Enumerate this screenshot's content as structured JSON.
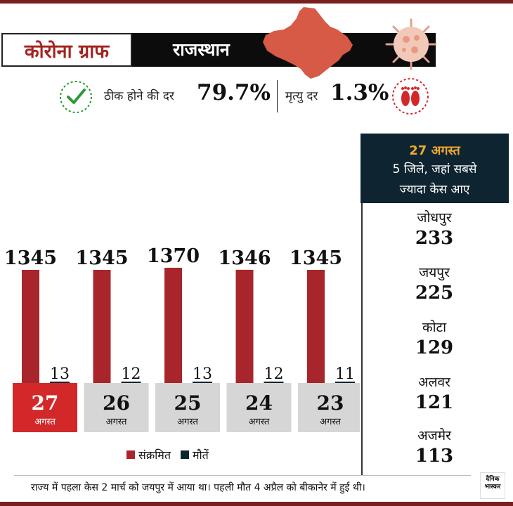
{
  "header": {
    "title": "कोरोना ग्राफ",
    "state": "राजस्थान"
  },
  "stats": {
    "recovery_label": "ठीक होने की दर",
    "recovery_value": "79.7%",
    "death_label": "मृत्यु दर",
    "death_value": "1.3%"
  },
  "colors": {
    "infected": "#a8262b",
    "deaths": "#0e2430",
    "highlight": "#d3282a",
    "date_box": "#d6d6d6",
    "map": "#d65a45"
  },
  "icons": [
    "rajasthan-map-icon",
    "virus-icon",
    "check-icon",
    "footprints-icon"
  ],
  "panel": {
    "date": "27 अगस्त",
    "subtitle_line1": "5 जिले, जहां सबसे",
    "subtitle_line2": "ज्यादा केस आए",
    "districts": [
      {
        "name": "जोधपुर",
        "value": "233"
      },
      {
        "name": "जयपुर",
        "value": "225"
      },
      {
        "name": "कोटा",
        "value": "129"
      },
      {
        "name": "अलवर",
        "value": "121"
      },
      {
        "name": "अजमेर",
        "value": "113"
      }
    ]
  },
  "legend": {
    "infected": "संक्रमित",
    "deaths": "मौतें"
  },
  "footer": {
    "note": "राज्य में पहला केस 2 मार्च को जयपुर में आया था। पहली मौत 4 अप्रैल को बीकानेर में हुई थी।",
    "logo_line1": "दैनिक",
    "logo_line2": "भास्कर"
  },
  "chart_data": {
    "type": "bar",
    "categories": [
      {
        "day": "27",
        "month": "अगस्त"
      },
      {
        "day": "26",
        "month": "अगस्त"
      },
      {
        "day": "25",
        "month": "अगस्त"
      },
      {
        "day": "24",
        "month": "अगस्त"
      },
      {
        "day": "23",
        "month": "अगस्त"
      }
    ],
    "series": [
      {
        "name": "संक्रमित",
        "values": [
          1345,
          1345,
          1370,
          1346,
          1345
        ]
      },
      {
        "name": "मौतें",
        "values": [
          13,
          12,
          13,
          12,
          11
        ]
      }
    ],
    "highlight_index": 0
  }
}
